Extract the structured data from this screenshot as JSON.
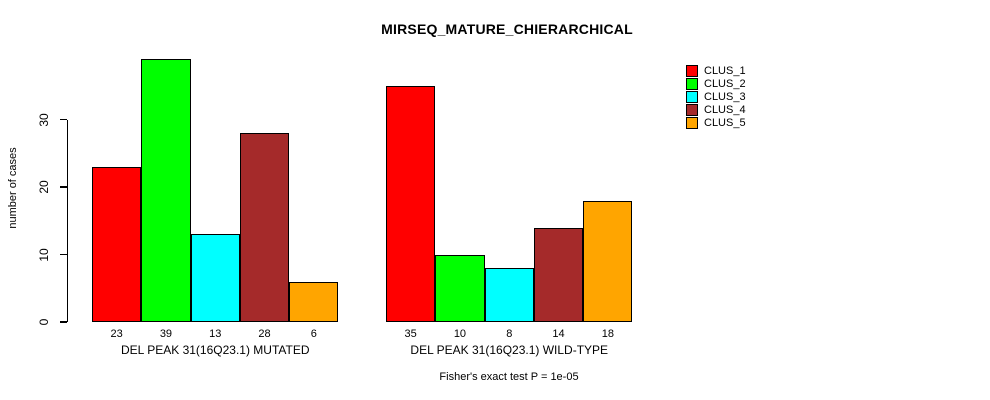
{
  "page": {
    "background": "#ffffff"
  },
  "chart_data": {
    "type": "bar",
    "title": "MIRSEQ_MATURE_CHIERARCHICAL",
    "ylabel": "number of cases",
    "xlabel": "",
    "ylim": [
      0,
      39.6
    ],
    "yticks": [
      0,
      10,
      20,
      30
    ],
    "grid": false,
    "legend_position": "right-outside",
    "bar_value_labels_shown": true,
    "series": [
      {
        "name": "CLUS_1",
        "color": "#FF0000"
      },
      {
        "name": "CLUS_2",
        "color": "#00FF00"
      },
      {
        "name": "CLUS_3",
        "color": "#00FFFF"
      },
      {
        "name": "CLUS_4",
        "color": "#A52A2A"
      },
      {
        "name": "CLUS_5",
        "color": "#FFA500"
      }
    ],
    "groups": [
      {
        "label": "DEL PEAK 31(16Q23.1) MUTATED",
        "values": [
          23,
          39,
          13,
          28,
          6
        ]
      },
      {
        "label": "DEL PEAK 31(16Q23.1) WILD-TYPE",
        "values": [
          35,
          10,
          8,
          14,
          18
        ]
      }
    ],
    "annotation": "Fisher's exact test P = 1e-05"
  }
}
